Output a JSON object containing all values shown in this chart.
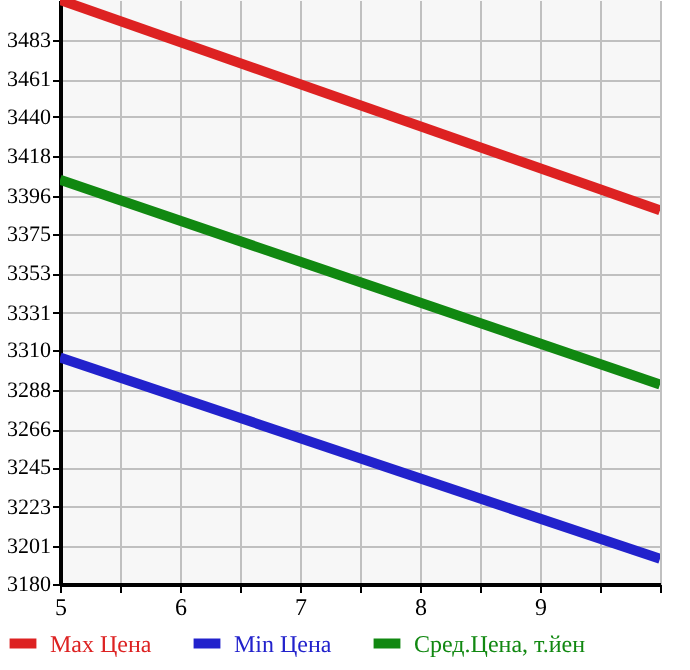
{
  "chart_data": {
    "type": "line",
    "x": [
      5,
      10
    ],
    "series": [
      {
        "name": "Max Цена",
        "color": "#dd2222",
        "values": [
          3505,
          3388
        ]
      },
      {
        "name": "Min Цена",
        "color": "#2222cc",
        "values": [
          3306,
          3194
        ]
      },
      {
        "name": "Сред.Цена, т.йен",
        "color": "#118811",
        "values": [
          3405,
          3291
        ]
      }
    ],
    "xlim": [
      5,
      10
    ],
    "xticks": [
      5,
      {
        "value": 5.5,
        "label": null
      },
      6,
      {
        "value": 6.5,
        "label": null
      },
      7,
      {
        "value": 7.5,
        "label": null
      },
      8,
      {
        "value": 8.5,
        "label": null
      },
      9,
      {
        "value": 9.5,
        "label": null
      },
      {
        "value": 10,
        "label": null
      }
    ],
    "ylim": [
      3180,
      3505
    ],
    "yticks": [
      3180,
      3201,
      3223,
      3245,
      3266,
      3288,
      3310,
      3331,
      3353,
      3375,
      3396,
      3418,
      3440,
      3461,
      3483
    ],
    "grid": true,
    "legend": "bottom",
    "marker": "none",
    "line_style": "solid"
  }
}
